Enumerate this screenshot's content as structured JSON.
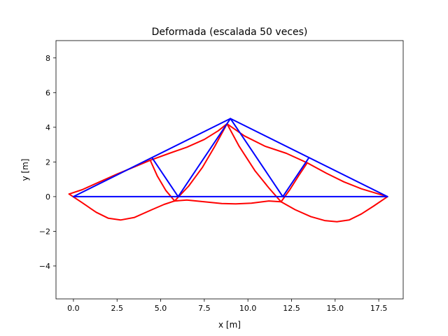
{
  "chart_data": {
    "type": "line",
    "title": "Deformada (escalada 50 veces)",
    "xlabel": "x [m]",
    "ylabel": "y [m]",
    "xlim": [
      -1.0,
      18.9
    ],
    "ylim": [
      -5.9,
      9.0
    ],
    "xticks": [
      0.0,
      2.5,
      5.0,
      7.5,
      10.0,
      12.5,
      15.0,
      17.5
    ],
    "xtick_labels": [
      "0.0",
      "2.5",
      "5.0",
      "7.5",
      "10.0",
      "12.5",
      "15.0",
      "17.5"
    ],
    "yticks": [
      -4,
      -2,
      0,
      2,
      4,
      6,
      8
    ],
    "ytick_labels": [
      "−4",
      "−2",
      "0",
      "2",
      "4",
      "6",
      "8"
    ],
    "grid": false,
    "colors": {
      "original": "#0000ff",
      "deformed": "#ff0000"
    },
    "series": [
      {
        "id": "original-structure",
        "color": "#0000ff",
        "segments": [
          [
            [
              0,
              0
            ],
            [
              18,
              0
            ]
          ],
          [
            [
              0,
              0
            ],
            [
              9,
              4.5
            ]
          ],
          [
            [
              9,
              4.5
            ],
            [
              18,
              0
            ]
          ],
          [
            [
              4.5,
              2.25
            ],
            [
              6,
              0
            ]
          ],
          [
            [
              6,
              0
            ],
            [
              9,
              4.5
            ]
          ],
          [
            [
              9,
              4.5
            ],
            [
              12,
              0
            ]
          ],
          [
            [
              12,
              0
            ],
            [
              13.5,
              2.25
            ]
          ]
        ]
      },
      {
        "id": "deformed-structure",
        "color": "#ff0000",
        "segments": [
          [
            [
              -0.25,
              0.15
            ],
            [
              0.5,
              0.4
            ],
            [
              1.5,
              0.85
            ],
            [
              2.5,
              1.3
            ],
            [
              3.5,
              1.72
            ],
            [
              4.4,
              2.1
            ]
          ],
          [
            [
              4.4,
              2.1
            ],
            [
              5.5,
              2.5
            ],
            [
              6.5,
              2.85
            ],
            [
              7.5,
              3.3
            ],
            [
              8.3,
              3.8
            ],
            [
              8.8,
              4.2
            ]
          ],
          [
            [
              8.8,
              4.2
            ],
            [
              9.8,
              3.5
            ],
            [
              11.0,
              2.9
            ],
            [
              12.2,
              2.5
            ],
            [
              13.4,
              1.95
            ]
          ],
          [
            [
              13.4,
              1.95
            ],
            [
              14.5,
              1.35
            ],
            [
              15.5,
              0.85
            ],
            [
              16.5,
              0.45
            ],
            [
              17.5,
              0.15
            ],
            [
              18.0,
              0.0
            ]
          ],
          [
            [
              4.4,
              2.1
            ],
            [
              4.8,
              1.2
            ],
            [
              5.3,
              0.35
            ],
            [
              5.8,
              -0.25
            ]
          ],
          [
            [
              5.8,
              -0.25
            ],
            [
              6.6,
              0.6
            ],
            [
              7.4,
              1.7
            ],
            [
              8.1,
              2.9
            ],
            [
              8.8,
              4.2
            ]
          ],
          [
            [
              8.8,
              4.2
            ],
            [
              9.5,
              2.9
            ],
            [
              10.4,
              1.5
            ],
            [
              11.2,
              0.5
            ],
            [
              11.9,
              -0.3
            ]
          ],
          [
            [
              11.9,
              -0.3
            ],
            [
              12.4,
              0.4
            ],
            [
              12.9,
              1.2
            ],
            [
              13.4,
              1.95
            ]
          ],
          [
            [
              -0.25,
              0.15
            ],
            [
              0.5,
              -0.35
            ],
            [
              1.3,
              -0.9
            ],
            [
              2.0,
              -1.25
            ],
            [
              2.7,
              -1.35
            ],
            [
              3.5,
              -1.2
            ],
            [
              4.5,
              -0.75
            ],
            [
              5.2,
              -0.45
            ],
            [
              5.8,
              -0.25
            ]
          ],
          [
            [
              5.8,
              -0.25
            ],
            [
              6.5,
              -0.2
            ],
            [
              7.5,
              -0.3
            ],
            [
              8.5,
              -0.4
            ],
            [
              9.3,
              -0.42
            ],
            [
              10.2,
              -0.38
            ],
            [
              11.2,
              -0.25
            ],
            [
              11.9,
              -0.3
            ]
          ],
          [
            [
              11.9,
              -0.3
            ],
            [
              12.7,
              -0.75
            ],
            [
              13.6,
              -1.15
            ],
            [
              14.4,
              -1.38
            ],
            [
              15.1,
              -1.45
            ],
            [
              15.8,
              -1.35
            ],
            [
              16.5,
              -1.0
            ],
            [
              17.2,
              -0.55
            ],
            [
              18.0,
              0.0
            ]
          ]
        ]
      }
    ]
  }
}
